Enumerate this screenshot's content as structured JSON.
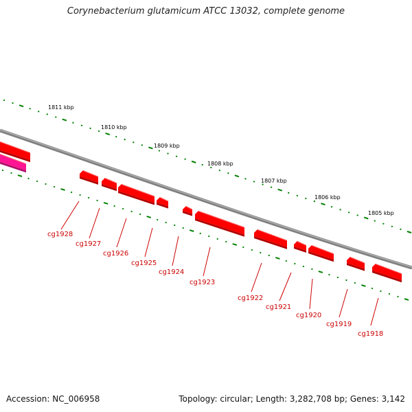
{
  "title": "Corynebacterium glutamicum ATCC 13032, complete genome",
  "footer": {
    "accession": "Accession: NC_006958",
    "topology": "Topology: circular; Length: 3,282,708 bp; Genes: 3,142"
  },
  "ruler_labels": [
    "1811 kbp",
    "1810 kbp",
    "1809 kbp",
    "1808 kbp",
    "1807 kbp",
    "1806 kbp",
    "1805 kbp"
  ],
  "genes": [
    "cg1928",
    "cg1927",
    "cg1926",
    "cg1925",
    "cg1924",
    "cg1923",
    "cg1922",
    "cg1921",
    "cg1920",
    "cg1919",
    "cg1918"
  ],
  "colors": {
    "backbone": "#808080",
    "gene": "#ff0000",
    "gene_alt": "#ff1493",
    "ruler": "#008000",
    "label": "#cc0000"
  }
}
